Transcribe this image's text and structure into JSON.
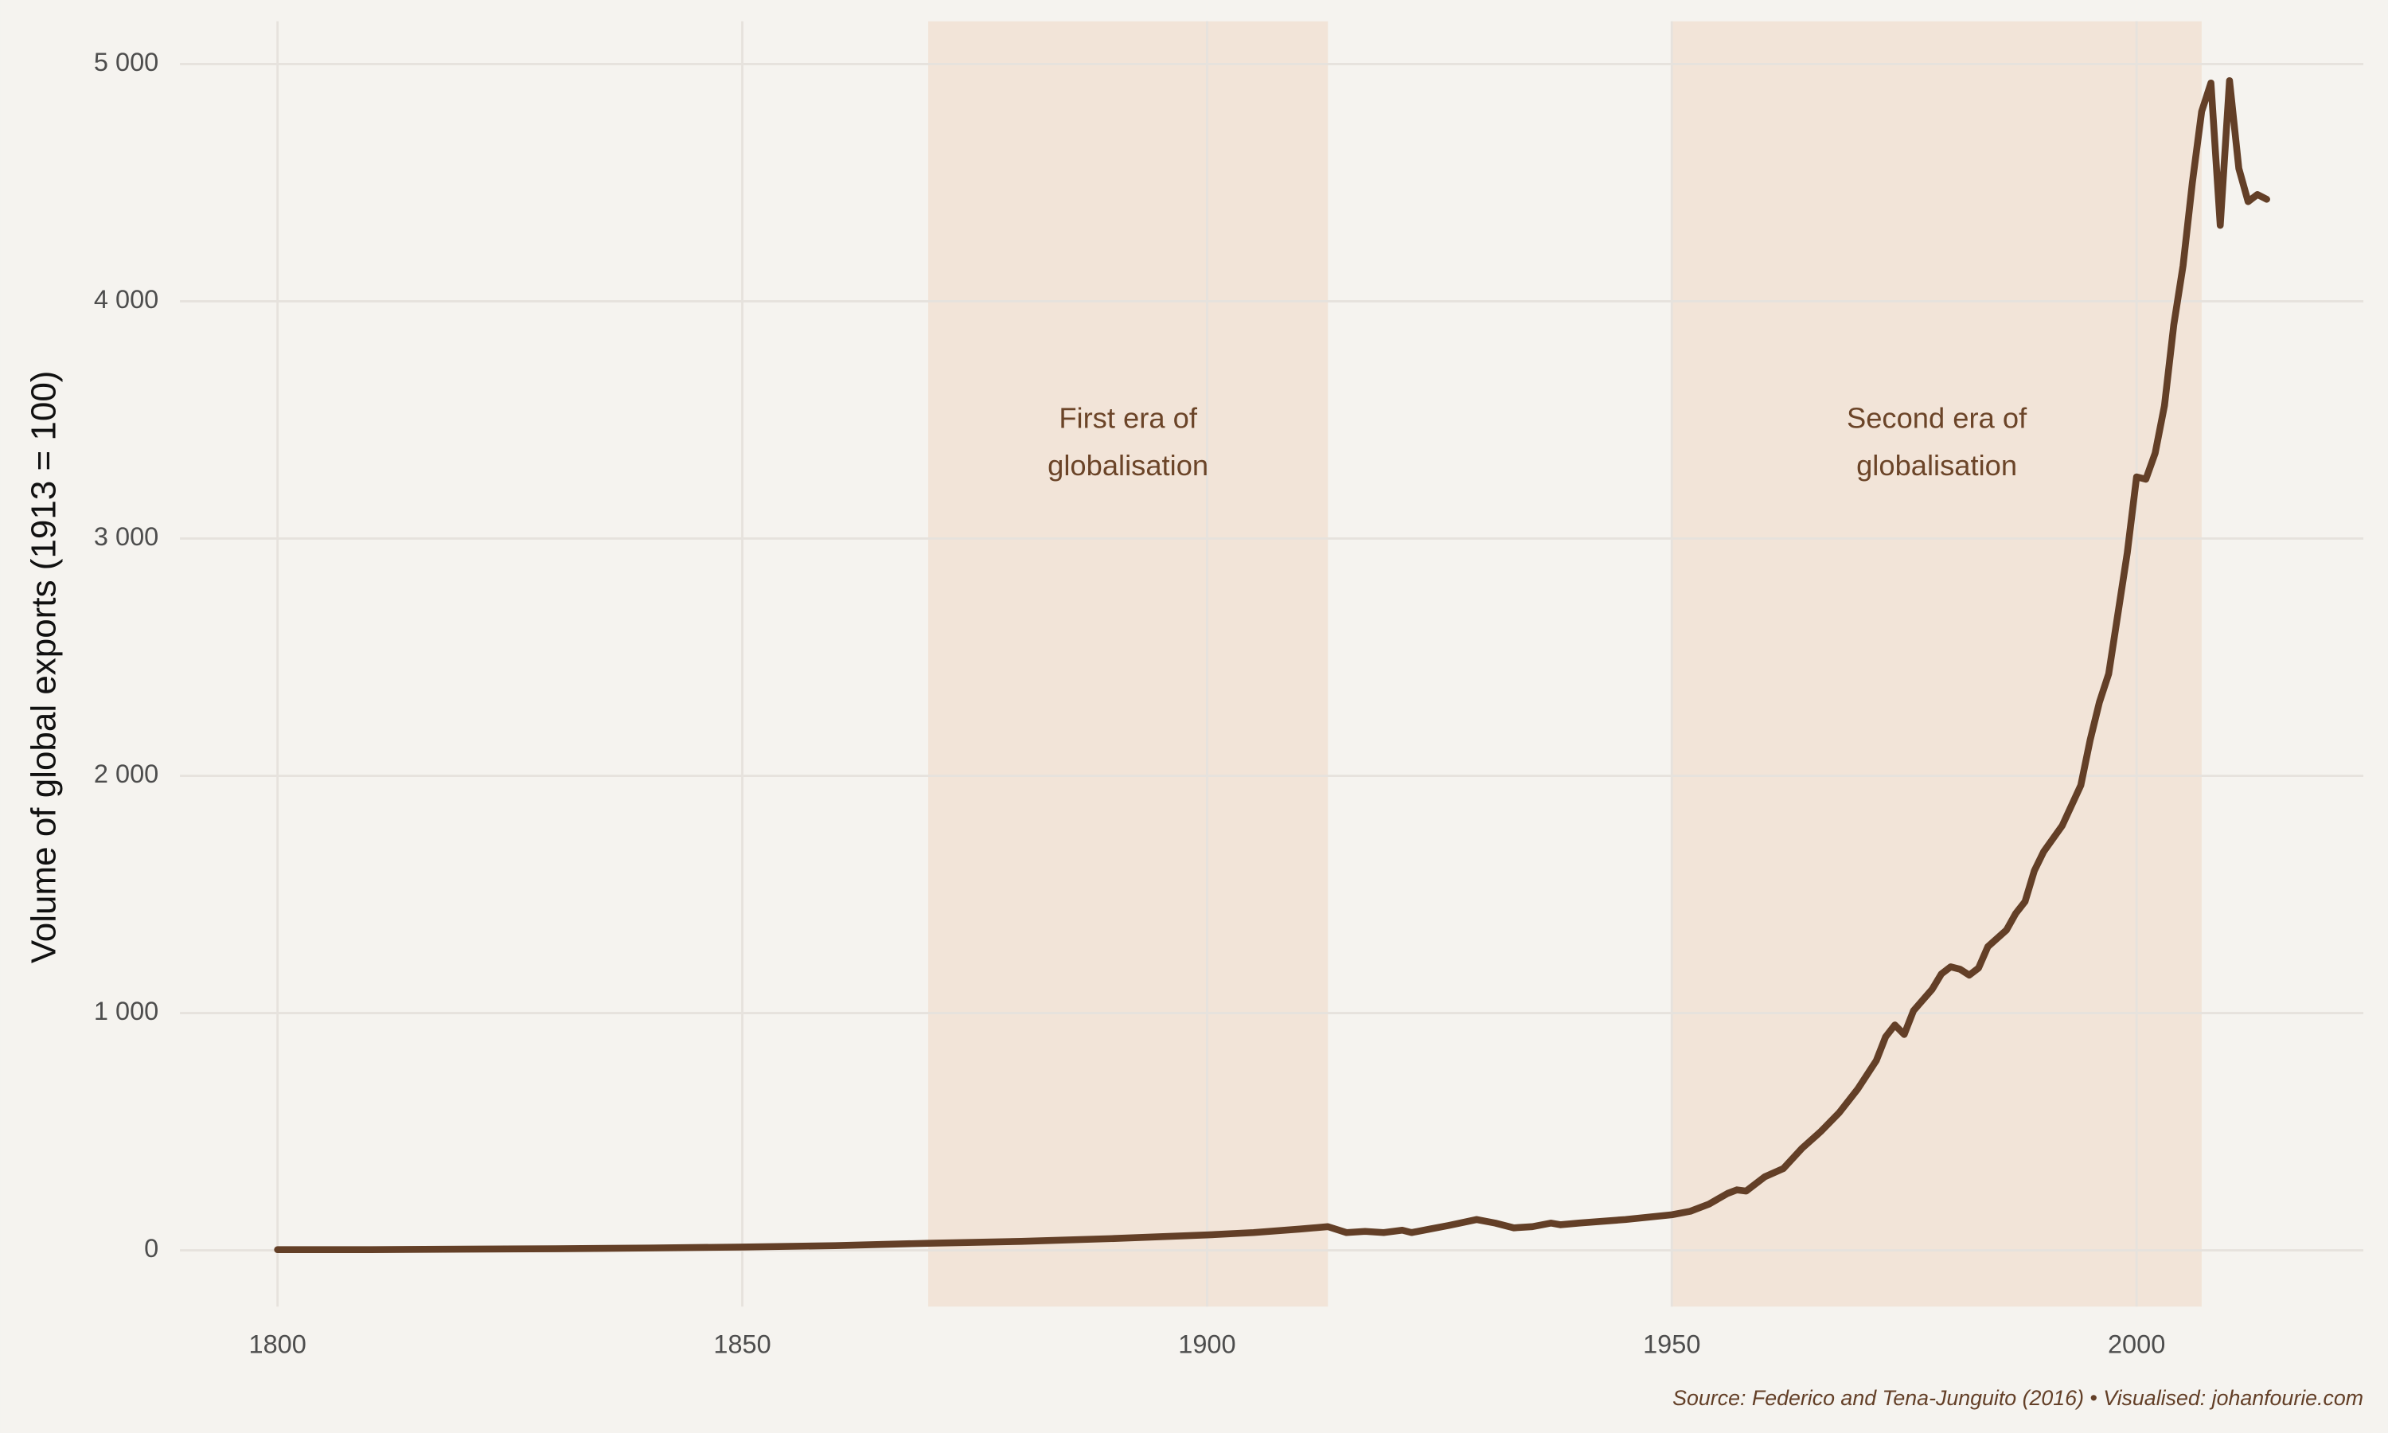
{
  "chart_data": {
    "type": "line",
    "y_label": "Volume of global exports (1913 = 100)",
    "caption": "Source: Federico and Tena-Junguito (2016) • Visualised: johanfourie.com",
    "color": "#633f27",
    "grid": true,
    "shade_color": "#f2e4d8",
    "regions": [
      {
        "start": 1870,
        "end": 1913,
        "label": [
          "First era of",
          "globalisation"
        ]
      },
      {
        "start": 1950,
        "end": 2007,
        "label": [
          "Second era of",
          "globalisation"
        ]
      }
    ],
    "xlim": [
      1789.5,
      2024.4
    ],
    "xticks": [
      1800,
      1850,
      1900,
      1950,
      2000
    ],
    "ylim": [
      -237,
      5180
    ],
    "yticks": [
      0,
      {
        "value": 1000,
        "label": "1 000"
      },
      {
        "value": 2000,
        "label": "2 000"
      },
      {
        "value": 3000,
        "label": "3 000"
      },
      {
        "value": 4000,
        "label": "4 000"
      },
      {
        "value": 5000,
        "label": "5 000"
      }
    ],
    "x": [
      1800,
      1810,
      1820,
      1830,
      1840,
      1850,
      1860,
      1870,
      1880,
      1890,
      1900,
      1905,
      1910,
      1913,
      1915,
      1917,
      1919,
      1921,
      1922,
      1924,
      1926,
      1929,
      1931,
      1933,
      1935,
      1937,
      1938,
      1940,
      1945,
      1950,
      1952,
      1954,
      1956,
      1957,
      1958,
      1960,
      1962,
      1964,
      1966,
      1968,
      1970,
      1972,
      1973,
      1974,
      1975,
      1976,
      1978,
      1979,
      1980,
      1981,
      1982,
      1983,
      1984,
      1986,
      1987,
      1988,
      1989,
      1990,
      1992,
      1994,
      1995,
      1996,
      1997,
      1999,
      2000,
      2001,
      2002,
      2003,
      2004,
      2005,
      2006,
      2007,
      2008,
      2009,
      2010,
      2011,
      2012,
      2013,
      2014
    ],
    "values": [
      3,
      3,
      5,
      7,
      10,
      14,
      20,
      30,
      38,
      50,
      65,
      75,
      90,
      100,
      75,
      80,
      75,
      85,
      75,
      90,
      105,
      130,
      115,
      95,
      100,
      115,
      108,
      115,
      130,
      150,
      165,
      195,
      240,
      255,
      250,
      310,
      345,
      430,
      500,
      580,
      680,
      800,
      900,
      950,
      910,
      1010,
      1100,
      1165,
      1195,
      1185,
      1160,
      1190,
      1280,
      1350,
      1420,
      1470,
      1600,
      1680,
      1790,
      1960,
      2150,
      2310,
      2430,
      2940,
      3260,
      3250,
      3360,
      3560,
      3900,
      4150,
      4500,
      4800,
      4920,
      4320,
      4930,
      4560,
      4420,
      4450,
      4430
    ]
  }
}
